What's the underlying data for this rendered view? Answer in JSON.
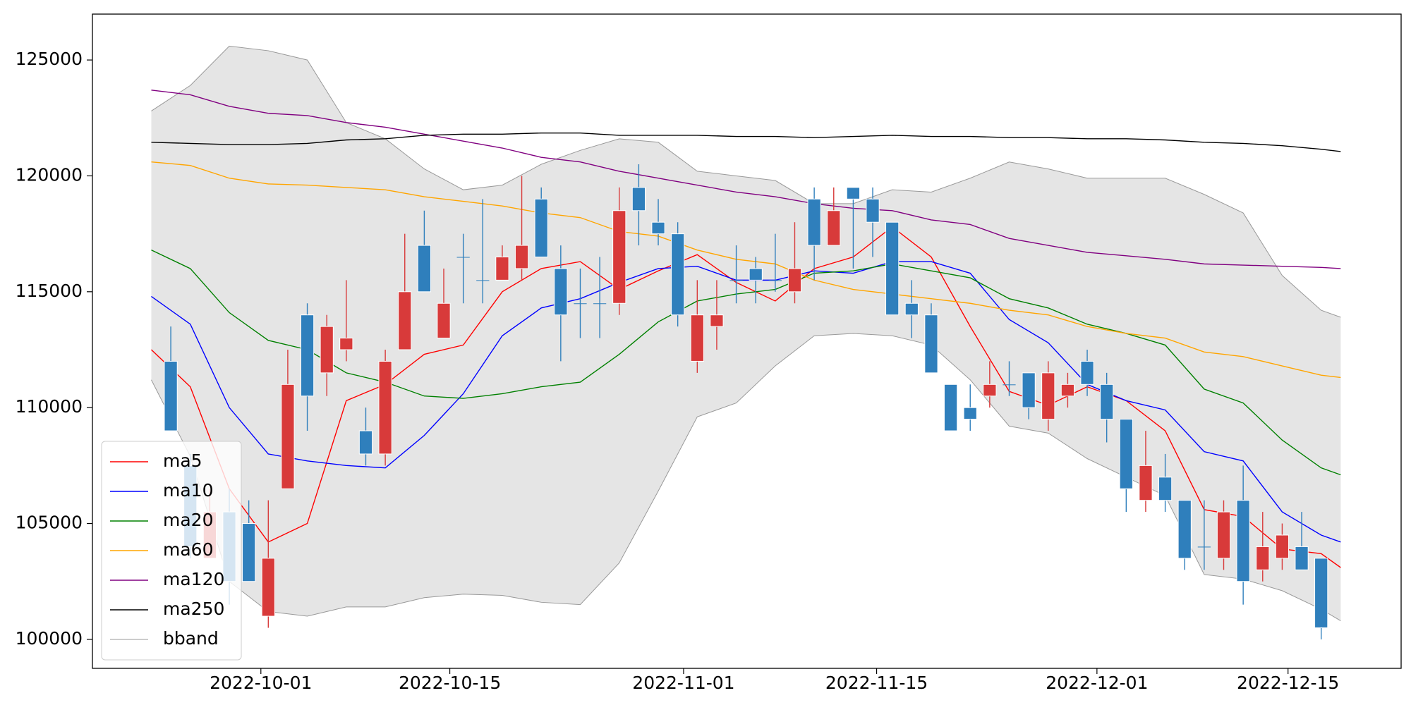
{
  "chart_data": {
    "type": "candlestick",
    "xlim": [
      -4.02,
      63.1
    ],
    "ylim": [
      98750,
      126980
    ],
    "xticks": [
      {
        "value": 4.62,
        "label": "2022-10-01"
      },
      {
        "value": 14.31,
        "label": "2022-10-15"
      },
      {
        "value": 26.3,
        "label": "2022-11-01"
      },
      {
        "value": 36.2,
        "label": "2022-11-15"
      },
      {
        "value": 47.5,
        "label": "2022-12-01"
      },
      {
        "value": 57.3,
        "label": "2022-12-15"
      }
    ],
    "yticks": [
      100000,
      105000,
      110000,
      115000,
      120000,
      125000
    ],
    "legend": "lower left",
    "candles": {
      "up_color": "#d83a3a",
      "down_color": "#2f7fbc",
      "x": [
        0,
        1,
        2,
        3,
        4,
        5,
        6,
        7,
        8,
        9,
        10,
        11,
        12,
        13,
        14,
        15,
        16,
        17,
        18,
        19,
        20,
        21,
        22,
        23,
        24,
        25,
        26,
        27,
        28,
        29,
        30,
        31,
        32,
        33,
        34,
        35,
        36,
        37,
        38,
        39,
        40,
        41,
        42,
        43,
        44,
        45,
        46,
        47,
        48,
        49,
        50,
        51,
        52,
        53,
        54,
        55,
        56,
        57,
        58,
        59
      ],
      "open": [
        112000,
        107500,
        103500,
        105500,
        105000,
        101000,
        106500,
        114000,
        111500,
        112500,
        109000,
        108000,
        112500,
        117000,
        113000,
        116500,
        115500,
        115500,
        116000,
        119000,
        116000,
        114500,
        114500,
        114500,
        119500,
        118000,
        117500,
        112000,
        113500,
        115500,
        116000,
        115500,
        115000,
        119000,
        117000,
        119500,
        119000,
        118000,
        114500,
        114000,
        111000,
        110000,
        110500,
        111000,
        111500,
        109500,
        110500,
        112000,
        111000,
        109500,
        106000,
        107000,
        106000,
        104000,
        103500,
        106000,
        103000,
        103500,
        104000,
        103500
      ],
      "high": [
        113500,
        108000,
        106500,
        106500,
        106000,
        106000,
        112500,
        114500,
        114000,
        115500,
        110000,
        112500,
        117500,
        118500,
        116000,
        117500,
        119000,
        117000,
        120000,
        119500,
        117000,
        116000,
        116500,
        119500,
        120500,
        119000,
        118000,
        115500,
        115500,
        117000,
        116500,
        117500,
        118000,
        119500,
        119500,
        119500,
        119500,
        118000,
        115500,
        114500,
        111000,
        111000,
        112000,
        112000,
        111500,
        112000,
        111500,
        112500,
        111500,
        109500,
        109000,
        108000,
        106000,
        106000,
        106000,
        107500,
        105500,
        105000,
        105500,
        103500
      ],
      "low": [
        109000,
        103500,
        103500,
        101500,
        102500,
        100500,
        106500,
        109000,
        110500,
        112000,
        107500,
        107500,
        112500,
        115000,
        113000,
        114500,
        114500,
        115500,
        115500,
        116500,
        112000,
        113000,
        113000,
        114000,
        117000,
        117000,
        113500,
        111500,
        112500,
        114500,
        114500,
        115000,
        114500,
        115500,
        117000,
        116000,
        116500,
        114000,
        113000,
        111500,
        109000,
        109000,
        110000,
        110500,
        109500,
        109000,
        110000,
        110500,
        108500,
        105500,
        105500,
        105500,
        103000,
        103000,
        103000,
        101500,
        102500,
        103000,
        103000,
        100000
      ],
      "close": [
        109000,
        104000,
        105500,
        102500,
        102500,
        103500,
        111000,
        110500,
        113500,
        113000,
        108000,
        112000,
        115000,
        115000,
        114500,
        116500,
        115500,
        116500,
        117000,
        116500,
        114000,
        114500,
        114500,
        118500,
        118500,
        117500,
        114000,
        114000,
        114000,
        115500,
        115500,
        115500,
        116000,
        117000,
        118500,
        119000,
        118000,
        114000,
        114000,
        111500,
        109000,
        109500,
        111000,
        111000,
        110000,
        111500,
        111000,
        111000,
        109500,
        106500,
        107500,
        106000,
        103500,
        104000,
        105500,
        102500,
        104000,
        104500,
        103000,
        100500
      ]
    },
    "line_x": [
      -1,
      1,
      3,
      5,
      7,
      9,
      11,
      13,
      15,
      17,
      19,
      21,
      23,
      25,
      27,
      29,
      31,
      33,
      35,
      37,
      39,
      41,
      43,
      45,
      47,
      49,
      51,
      53,
      55,
      57,
      59,
      60
    ],
    "series": [
      {
        "name": "ma5",
        "color": "#ff0000",
        "values": [
          112500,
          110900,
          106500,
          104200,
          105000,
          110300,
          111000,
          112300,
          112700,
          115000,
          116000,
          116300,
          115100,
          115900,
          116600,
          115400,
          114600,
          116000,
          116500,
          117800,
          116500,
          113500,
          110700,
          110100,
          110900,
          110300,
          109000,
          105600,
          105300,
          103900,
          103700,
          103100
        ]
      },
      {
        "name": "ma10",
        "color": "#0000ff",
        "values": [
          114800,
          113600,
          110000,
          108000,
          107700,
          107500,
          107400,
          108800,
          110600,
          113100,
          114300,
          114700,
          115400,
          116000,
          116100,
          115500,
          115500,
          115900,
          115800,
          116300,
          116300,
          115800,
          113800,
          112800,
          111000,
          110300,
          109900,
          108100,
          107700,
          105500,
          104500,
          104200
        ]
      },
      {
        "name": "ma20",
        "color": "#008000",
        "values": [
          116800,
          116000,
          114100,
          112900,
          112500,
          111500,
          111100,
          110500,
          110400,
          110600,
          110900,
          111100,
          112300,
          113700,
          114600,
          114900,
          115100,
          115800,
          115900,
          116200,
          115900,
          115600,
          114700,
          114300,
          113600,
          113200,
          112700,
          110800,
          110200,
          108600,
          107400,
          107100
        ]
      },
      {
        "name": "ma60",
        "color": "#ffa500",
        "values": [
          120600,
          120450,
          119900,
          119650,
          119600,
          119500,
          119400,
          119100,
          118900,
          118700,
          118400,
          118200,
          117600,
          117400,
          116800,
          116400,
          116200,
          115500,
          115100,
          114900,
          114700,
          114500,
          114200,
          114000,
          113500,
          113200,
          113000,
          112400,
          112200,
          111800,
          111400,
          111300
        ]
      },
      {
        "name": "ma120",
        "color": "#800080",
        "values": [
          123700,
          123500,
          123000,
          122700,
          122600,
          122300,
          122100,
          121800,
          121500,
          121200,
          120800,
          120600,
          120200,
          119900,
          119600,
          119300,
          119100,
          118800,
          118600,
          118500,
          118100,
          117900,
          117300,
          117000,
          116700,
          116550,
          116400,
          116200,
          116150,
          116100,
          116050,
          116000
        ]
      },
      {
        "name": "ma250",
        "color": "#000000",
        "values": [
          121450,
          121400,
          121350,
          121350,
          121400,
          121550,
          121600,
          121750,
          121800,
          121800,
          121850,
          121850,
          121750,
          121750,
          121750,
          121700,
          121700,
          121650,
          121700,
          121750,
          121700,
          121700,
          121650,
          121650,
          121600,
          121600,
          121550,
          121450,
          121400,
          121300,
          121150,
          121050
        ]
      }
    ],
    "bband": {
      "name": "bband",
      "color": "#999999",
      "fill": "#e5e5e5",
      "upper": [
        122800,
        123900,
        125600,
        125400,
        125000,
        122300,
        121600,
        120300,
        119400,
        119600,
        120500,
        121100,
        121600,
        121450,
        120200,
        120000,
        119800,
        118800,
        118800,
        119400,
        119300,
        119900,
        120600,
        120300,
        119900,
        119900,
        119900,
        119200,
        118400,
        115700,
        114200,
        113900
      ],
      "lower": [
        111200,
        107900,
        102500,
        101200,
        101000,
        101400,
        101400,
        101800,
        101950,
        101900,
        101600,
        101500,
        103300,
        106400,
        109600,
        110200,
        111800,
        113100,
        113200,
        113100,
        112700,
        111200,
        109200,
        108900,
        107800,
        107000,
        106200,
        102800,
        102600,
        102100,
        101300,
        100800
      ]
    }
  }
}
